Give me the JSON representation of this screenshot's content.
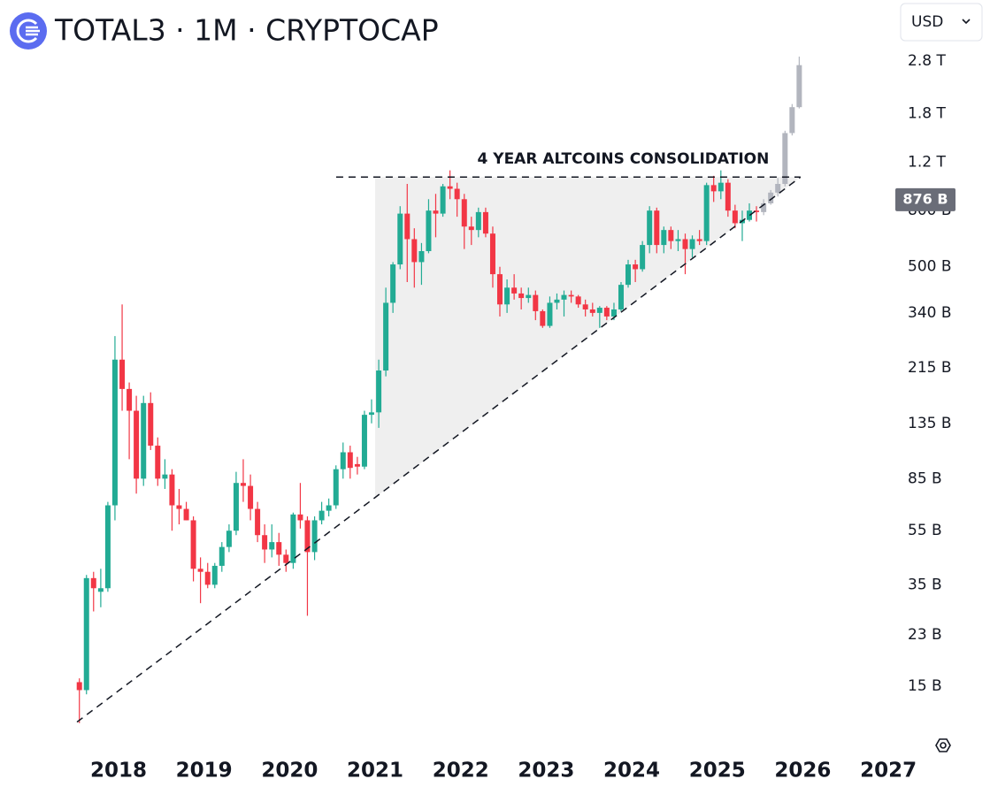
{
  "header": {
    "title": "TOTAL3 · 1M · CRYPTOCAP",
    "currency": "USD"
  },
  "chart_data": {
    "type": "candlestick",
    "annotation": "4 YEAR ALTCOINS CONSOLIDATION",
    "log_scale": true,
    "up_color": "#22ab94",
    "down_color": "#f23645",
    "projection_color": "#b2b5be",
    "xlim": [
      2016.614,
      2027.061
    ],
    "xticks": [
      2018,
      2019,
      2020,
      2021,
      2022,
      2023,
      2024,
      2025,
      2026,
      2027
    ],
    "ylim": [
      9,
      3100
    ],
    "yticks": [
      {
        "value": 2800,
        "label": "2.8 T"
      },
      {
        "value": 1800,
        "label": "1.8 T"
      },
      {
        "value": 1200,
        "label": "1.2 T"
      },
      {
        "value": 800,
        "label": "800 B"
      },
      {
        "value": 500,
        "label": "500 B"
      },
      {
        "value": 340,
        "label": "340 B"
      },
      {
        "value": 215,
        "label": "215 B"
      },
      {
        "value": 135,
        "label": "135 B"
      },
      {
        "value": 85,
        "label": "85 B"
      },
      {
        "value": 55,
        "label": "55 B"
      },
      {
        "value": 35,
        "label": "35 B"
      },
      {
        "value": 23,
        "label": "23 B"
      },
      {
        "value": 15,
        "label": "15 B"
      }
    ],
    "last_price": {
      "value": 876,
      "label": "876 B"
    },
    "trendlines": [
      {
        "x": [
          2017.514,
          2025.973
        ],
        "y": [
          11.1,
          1059
        ]
      },
      {
        "x": [
          2020.544,
          2025.973
        ],
        "y": [
          1059,
          1059
        ]
      }
    ],
    "zone_x": [
      2021.0,
      2025.973
    ],
    "candles": [
      [
        2017.542,
        15.5,
        16,
        11,
        14.5
      ],
      [
        2017.625,
        14.5,
        38,
        14,
        37
      ],
      [
        2017.708,
        37,
        39,
        28,
        34
      ],
      [
        2017.792,
        33,
        40,
        29,
        34
      ],
      [
        2017.875,
        34,
        70,
        33,
        68
      ],
      [
        2017.958,
        68,
        280,
        60,
        230
      ],
      [
        2018.042,
        230,
        365,
        150,
        180
      ],
      [
        2018.125,
        180,
        190,
        100,
        150
      ],
      [
        2018.208,
        150,
        170,
        75,
        85
      ],
      [
        2018.292,
        85,
        170,
        80,
        160
      ],
      [
        2018.375,
        160,
        175,
        108,
        112
      ],
      [
        2018.458,
        112,
        120,
        80,
        85
      ],
      [
        2018.542,
        85,
        100,
        78,
        88
      ],
      [
        2018.625,
        88,
        92,
        55,
        68
      ],
      [
        2018.708,
        68,
        78,
        58,
        66
      ],
      [
        2018.792,
        66,
        70,
        60,
        60
      ],
      [
        2018.875,
        60,
        62,
        36,
        40
      ],
      [
        2018.958,
        40,
        44,
        30,
        39
      ],
      [
        2019.042,
        39,
        42,
        34,
        35
      ],
      [
        2019.125,
        35,
        42,
        34,
        41
      ],
      [
        2019.208,
        41,
        50,
        39,
        48
      ],
      [
        2019.292,
        48,
        58,
        46,
        55
      ],
      [
        2019.375,
        55,
        90,
        53,
        82
      ],
      [
        2019.458,
        82,
        100,
        70,
        80
      ],
      [
        2019.542,
        80,
        88,
        60,
        66
      ],
      [
        2019.625,
        66,
        70,
        50,
        53
      ],
      [
        2019.708,
        53,
        58,
        42,
        47
      ],
      [
        2019.792,
        47,
        58,
        44,
        50
      ],
      [
        2019.875,
        50,
        54,
        41,
        45
      ],
      [
        2019.958,
        45,
        47,
        39,
        42
      ],
      [
        2020.042,
        42,
        64,
        40,
        63
      ],
      [
        2020.125,
        63,
        82,
        56,
        60
      ],
      [
        2020.208,
        60,
        62,
        27,
        46
      ],
      [
        2020.292,
        46,
        62,
        43,
        60
      ],
      [
        2020.375,
        60,
        70,
        58,
        65
      ],
      [
        2020.458,
        65,
        72,
        62,
        68
      ],
      [
        2020.542,
        68,
        95,
        66,
        92
      ],
      [
        2020.625,
        92,
        115,
        85,
        106
      ],
      [
        2020.708,
        106,
        112,
        85,
        93
      ],
      [
        2020.792,
        96,
        102,
        88,
        94
      ],
      [
        2020.875,
        94,
        150,
        92,
        145
      ],
      [
        2020.958,
        145,
        165,
        135,
        148
      ],
      [
        2021.042,
        148,
        230,
        130,
        210
      ],
      [
        2021.125,
        210,
        420,
        200,
        370
      ],
      [
        2021.208,
        370,
        520,
        340,
        510
      ],
      [
        2021.292,
        510,
        830,
        490,
        780
      ],
      [
        2021.375,
        780,
        1000,
        440,
        630
      ],
      [
        2021.458,
        630,
        690,
        420,
        520
      ],
      [
        2021.542,
        520,
        610,
        430,
        570
      ],
      [
        2021.625,
        570,
        880,
        560,
        800
      ],
      [
        2021.708,
        800,
        920,
        640,
        780
      ],
      [
        2021.792,
        780,
        1000,
        760,
        980
      ],
      [
        2021.875,
        980,
        1120,
        880,
        960
      ],
      [
        2021.958,
        960,
        1010,
        760,
        880
      ],
      [
        2022.042,
        880,
        920,
        580,
        700
      ],
      [
        2022.125,
        700,
        760,
        600,
        680
      ],
      [
        2022.208,
        680,
        820,
        640,
        790
      ],
      [
        2022.292,
        790,
        820,
        640,
        660
      ],
      [
        2022.375,
        660,
        700,
        420,
        470
      ],
      [
        2022.458,
        470,
        500,
        330,
        365
      ],
      [
        2022.542,
        365,
        450,
        340,
        420
      ],
      [
        2022.625,
        420,
        470,
        380,
        400
      ],
      [
        2022.708,
        400,
        420,
        350,
        385
      ],
      [
        2022.792,
        385,
        420,
        370,
        395
      ],
      [
        2022.875,
        395,
        410,
        320,
        345
      ],
      [
        2022.958,
        345,
        350,
        300,
        305
      ],
      [
        2023.042,
        305,
        390,
        300,
        370
      ],
      [
        2023.125,
        370,
        400,
        350,
        380
      ],
      [
        2023.208,
        380,
        410,
        330,
        395
      ],
      [
        2023.292,
        395,
        410,
        370,
        390
      ],
      [
        2023.375,
        390,
        395,
        355,
        365
      ],
      [
        2023.458,
        365,
        380,
        330,
        350
      ],
      [
        2023.542,
        350,
        370,
        330,
        340
      ],
      [
        2023.625,
        340,
        360,
        300,
        355
      ],
      [
        2023.708,
        355,
        360,
        320,
        330
      ],
      [
        2023.792,
        330,
        370,
        320,
        350
      ],
      [
        2023.875,
        350,
        440,
        345,
        430
      ],
      [
        2023.958,
        430,
        530,
        420,
        510
      ],
      [
        2024.042,
        510,
        530,
        440,
        490
      ],
      [
        2024.125,
        490,
        620,
        480,
        600
      ],
      [
        2024.208,
        600,
        830,
        560,
        800
      ],
      [
        2024.292,
        800,
        820,
        560,
        600
      ],
      [
        2024.375,
        600,
        700,
        560,
        680
      ],
      [
        2024.458,
        680,
        700,
        580,
        620
      ],
      [
        2024.542,
        620,
        680,
        570,
        630
      ],
      [
        2024.625,
        630,
        660,
        470,
        580
      ],
      [
        2024.708,
        580,
        650,
        540,
        630
      ],
      [
        2024.792,
        630,
        680,
        600,
        620
      ],
      [
        2024.875,
        620,
        1010,
        600,
        990
      ],
      [
        2024.958,
        990,
        1070,
        860,
        940
      ],
      [
        2025.042,
        940,
        1120,
        880,
        1010
      ],
      [
        2025.125,
        1010,
        1040,
        760,
        800
      ],
      [
        2025.208,
        800,
        840,
        690,
        720
      ],
      [
        2025.292,
        720,
        800,
        620,
        740
      ],
      [
        2025.375,
        740,
        850,
        730,
        800
      ],
      [
        2025.458,
        800,
        830,
        730,
        790
      ]
    ],
    "projection": [
      [
        2025.542,
        790,
        880,
        770,
        850
      ],
      [
        2025.625,
        850,
        950,
        840,
        930
      ],
      [
        2025.708,
        930,
        1050,
        900,
        1000
      ],
      [
        2025.792,
        1000,
        1560,
        980,
        1530
      ],
      [
        2025.875,
        1530,
        1950,
        1500,
        1900
      ],
      [
        2025.958,
        1900,
        2900,
        1880,
        2700
      ]
    ]
  }
}
